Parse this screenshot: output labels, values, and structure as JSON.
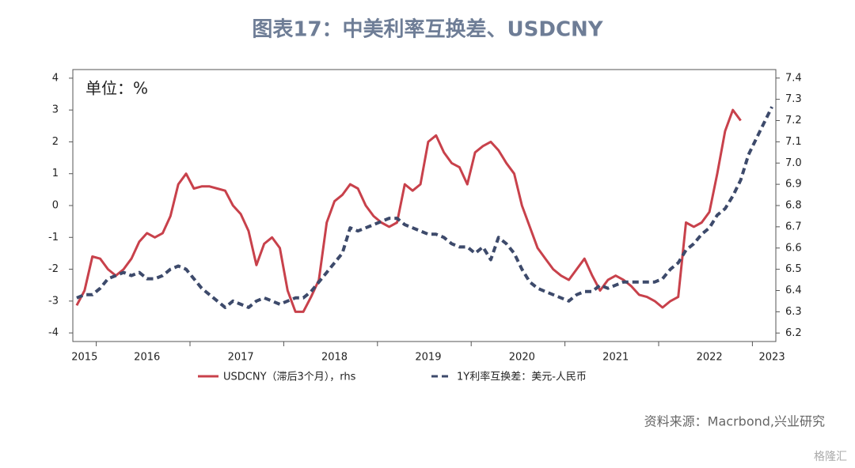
{
  "chart_data": {
    "type": "line",
    "title": "图表17：中美利率互换差、USDCNY",
    "annotation": "单位：%",
    "source": "资料来源：Macrbond,兴业研究",
    "watermark": "格隆汇",
    "categories": [
      null,
      "2015",
      null,
      null,
      null,
      null,
      null,
      null,
      null,
      "2016",
      null,
      null,
      null,
      null,
      null,
      null,
      null,
      null,
      null,
      null,
      null,
      "2017",
      null,
      null,
      null,
      null,
      null,
      null,
      null,
      null,
      null,
      null,
      null,
      "2018",
      null,
      null,
      null,
      null,
      null,
      null,
      null,
      null,
      null,
      null,
      null,
      "2019",
      null,
      null,
      null,
      null,
      null,
      null,
      null,
      null,
      null,
      null,
      null,
      "2020",
      null,
      null,
      null,
      null,
      null,
      null,
      null,
      null,
      null,
      null,
      null,
      "2021",
      null,
      null,
      null,
      null,
      null,
      null,
      null,
      null,
      null,
      null,
      null,
      "2022",
      null,
      null,
      null,
      null,
      null,
      null,
      null,
      "2023"
    ],
    "year_starts": [
      3,
      15,
      27,
      39,
      51,
      63,
      75,
      87
    ],
    "ylim": [
      -4.27,
      4.27
    ],
    "yticks": [
      -4,
      -3,
      -2,
      -1,
      0,
      1,
      2,
      3,
      4
    ],
    "y2lim": [
      6.16,
      7.44
    ],
    "y2ticks": [
      6.2,
      6.3,
      6.4,
      6.5,
      6.6,
      6.7,
      6.8,
      6.9,
      {
        "value": 7,
        "label": "7.0"
      },
      7.1,
      7.2,
      7.3,
      7.4
    ],
    "series": [
      {
        "name": "USDCNY（滞后3个月），rhs",
        "color": "#c8414b",
        "axis": "y2",
        "dash": false,
        "values": [
          6.33,
          6.4,
          6.56,
          6.55,
          6.5,
          6.47,
          6.5,
          6.55,
          6.63,
          6.67,
          6.65,
          6.67,
          6.75,
          6.9,
          6.95,
          6.88,
          6.89,
          6.89,
          6.88,
          6.87,
          6.8,
          6.76,
          6.68,
          6.52,
          6.62,
          6.65,
          6.6,
          6.4,
          6.3,
          6.3,
          6.37,
          6.45,
          6.72,
          6.82,
          6.85,
          6.9,
          6.88,
          6.8,
          6.75,
          6.72,
          6.7,
          6.72,
          6.9,
          6.87,
          6.9,
          7.1,
          7.13,
          7.05,
          7.0,
          6.98,
          6.9,
          7.05,
          7.08,
          7.1,
          7.06,
          7.0,
          6.95,
          6.8,
          6.7,
          6.6,
          6.55,
          6.5,
          6.47,
          6.45,
          6.5,
          6.55,
          6.47,
          6.4,
          6.45,
          6.47,
          6.45,
          6.42,
          6.38,
          6.37,
          6.35,
          6.32,
          6.35,
          6.37,
          6.72,
          6.7,
          6.72,
          6.77,
          6.95,
          7.15,
          7.25,
          7.2,
          null,
          null,
          null,
          null
        ]
      },
      {
        "name": "1Y利率互换差：美元-人民币",
        "color": "#3d4a6b",
        "dash": true,
        "values": [
          -2.9,
          -2.8,
          -2.8,
          -2.6,
          -2.3,
          -2.2,
          -2.1,
          -2.2,
          -2.1,
          -2.3,
          -2.3,
          -2.2,
          -2.0,
          -1.9,
          -2.0,
          -2.3,
          -2.6,
          -2.8,
          -3.0,
          -3.2,
          -3.0,
          -3.1,
          -3.2,
          -3.0,
          -2.9,
          -3.0,
          -3.1,
          -3.0,
          -2.9,
          -2.9,
          -2.7,
          -2.4,
          -2.1,
          -1.8,
          -1.5,
          -0.7,
          -0.8,
          -0.7,
          -0.6,
          -0.5,
          -0.4,
          -0.4,
          -0.6,
          -0.7,
          -0.8,
          -0.9,
          -0.9,
          -1.0,
          -1.2,
          -1.3,
          -1.3,
          -1.5,
          -1.3,
          -1.7,
          -1.0,
          -1.2,
          -1.5,
          -2.0,
          -2.4,
          -2.6,
          -2.7,
          -2.8,
          -2.9,
          -3.0,
          -2.8,
          -2.7,
          -2.7,
          -2.5,
          -2.6,
          -2.5,
          -2.4,
          -2.4,
          -2.4,
          -2.4,
          -2.4,
          -2.3,
          -2.0,
          -1.8,
          -1.4,
          -1.2,
          -0.9,
          -0.7,
          -0.3,
          -0.1,
          0.3,
          0.8,
          1.6,
          2.1,
          2.6,
          3.1
        ]
      }
    ]
  }
}
